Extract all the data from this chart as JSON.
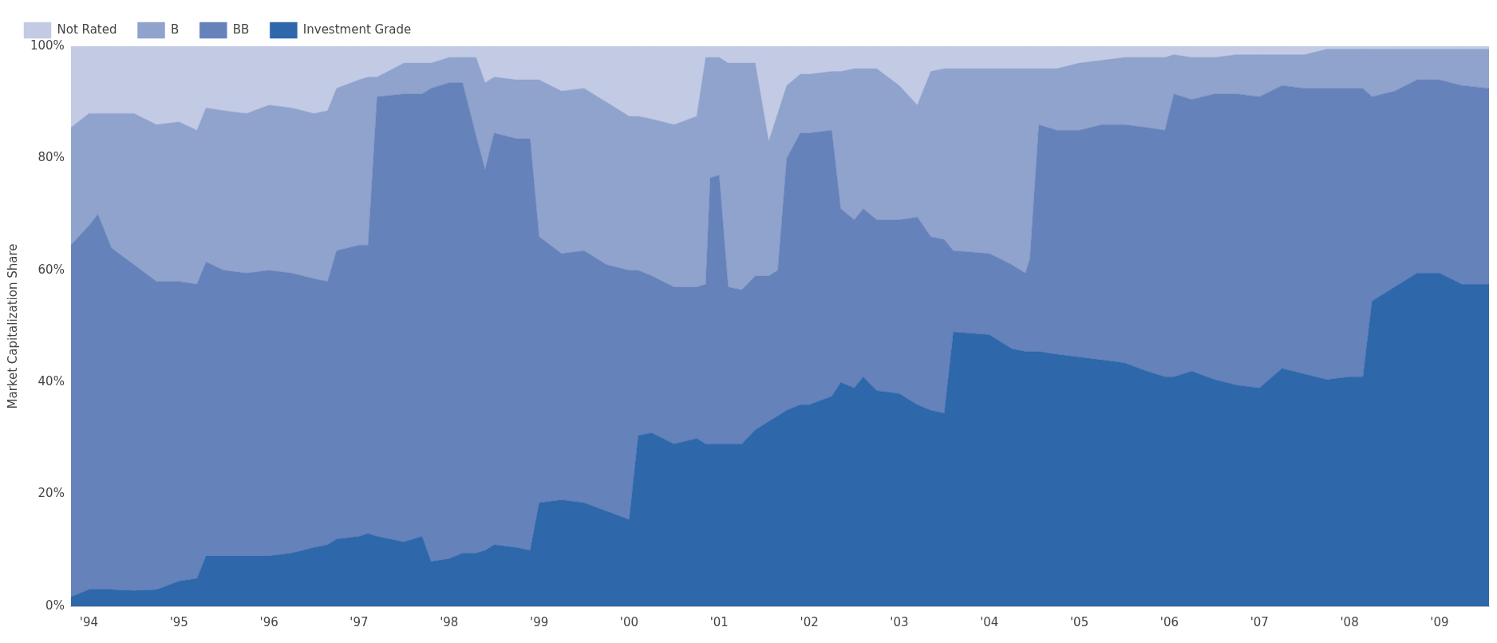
{
  "chart_data": {
    "type": "area",
    "stacked": true,
    "ylabel": "Market Capitalization Share",
    "legend": "top left",
    "grid": false,
    "x": [
      1993.8,
      1994.0,
      1994.1,
      1994.25,
      1994.5,
      1994.75,
      1995.0,
      1995.2,
      1995.3,
      1995.5,
      1995.75,
      1996.0,
      1996.25,
      1996.5,
      1996.65,
      1996.75,
      1997.0,
      1997.1,
      1997.2,
      1997.5,
      1997.7,
      1997.8,
      1998.0,
      1998.15,
      1998.3,
      1998.4,
      1998.5,
      1998.75,
      1998.9,
      1999.0,
      1999.25,
      1999.5,
      1999.75,
      2000.0,
      2000.1,
      2000.25,
      2000.5,
      2000.75,
      2000.85,
      2000.9,
      2001.0,
      2001.1,
      2001.25,
      2001.4,
      2001.55,
      2001.65,
      2001.75,
      2001.9,
      2002.0,
      2002.25,
      2002.35,
      2002.5,
      2002.6,
      2002.75,
      2003.0,
      2003.2,
      2003.35,
      2003.5,
      2003.6,
      2004.0,
      2004.25,
      2004.4,
      2004.45,
      2004.55,
      2004.75,
      2005.0,
      2005.25,
      2005.5,
      2005.75,
      2005.95,
      2006.05,
      2006.25,
      2006.5,
      2006.75,
      2007.0,
      2007.25,
      2007.5,
      2007.75,
      2008.0,
      2008.15,
      2008.25,
      2008.5,
      2008.75,
      2009.0,
      2009.25,
      2009.55
    ],
    "series": [
      {
        "name": "Investment Grade",
        "color": "#2e67aa",
        "values": [
          1.7,
          3,
          3,
          3,
          2.8,
          3,
          4.5,
          5,
          9,
          9,
          9,
          9,
          9.5,
          10.5,
          11,
          12,
          12.5,
          13,
          12.5,
          11.5,
          12.5,
          8,
          8.5,
          9.5,
          9.5,
          10,
          11,
          10.5,
          10,
          18.5,
          19,
          18.5,
          17,
          15.5,
          30.5,
          31,
          29,
          30,
          29,
          29,
          29,
          29,
          29,
          31.5,
          33,
          34,
          35,
          36,
          36,
          37.5,
          40,
          39,
          41,
          38.5,
          38,
          36,
          35,
          34.5,
          49,
          48.5,
          46,
          45.5,
          45.5,
          45.5,
          45,
          44.5,
          44,
          43.5,
          42,
          41,
          41,
          42,
          40.5,
          39.5,
          39,
          42.5,
          41.5,
          40.5,
          41,
          41,
          54.5,
          57,
          59.5,
          59.5,
          57.5,
          57.5
        ]
      },
      {
        "name": "BB",
        "color": "#6682ba",
        "values": [
          62.8,
          65,
          67,
          61,
          58.2,
          55,
          53.5,
          52.5,
          52.5,
          51,
          50.5,
          51,
          50,
          48,
          47,
          51.5,
          52,
          51.5,
          78.5,
          80,
          79,
          84.5,
          85,
          84,
          74.5,
          68,
          73.5,
          73,
          73.5,
          47.5,
          44,
          45,
          44,
          44.5,
          29.5,
          28,
          28,
          27,
          28.5,
          47.5,
          48,
          28,
          27.5,
          27.5,
          26,
          26,
          45,
          48.5,
          48.5,
          47.5,
          31,
          30,
          30,
          30.5,
          31,
          33.5,
          31,
          31,
          14.5,
          14.5,
          15,
          14,
          16.5,
          40.5,
          40,
          40.5,
          42,
          42.5,
          43.5,
          44,
          50.5,
          48.5,
          51,
          52,
          52,
          50.5,
          51,
          52,
          51.5,
          51.5,
          36.5,
          35,
          34.5,
          34.5,
          35.5,
          35
        ]
      },
      {
        "name": "B",
        "color": "#8fa3cd",
        "values": [
          21,
          20,
          18,
          24,
          27,
          28,
          28.5,
          27.5,
          27.5,
          28.5,
          28.5,
          29.5,
          29.5,
          29.5,
          30.5,
          29,
          29.5,
          30,
          3.5,
          5.5,
          5.5,
          4.5,
          4.5,
          4.5,
          14,
          15.5,
          10,
          10.5,
          10.5,
          28,
          29,
          29,
          29,
          27.5,
          27.5,
          28,
          29,
          30.5,
          40.5,
          21.5,
          21,
          40,
          40.5,
          38,
          24,
          28,
          13,
          10.5,
          10.5,
          10.5,
          24.5,
          27,
          25,
          27,
          24,
          20,
          29.5,
          30.5,
          32.5,
          33,
          35,
          36.5,
          34,
          10,
          11,
          12,
          11.5,
          12,
          12.5,
          13,
          7,
          7.5,
          6.5,
          7,
          7.5,
          5.5,
          6,
          7,
          7,
          7,
          8.5,
          7.5,
          5.5,
          5.5,
          6.5,
          7
        ]
      },
      {
        "name": "Not Rated",
        "color": "#c3cae4",
        "values": [
          14.5,
          12,
          12,
          12,
          12,
          14,
          13.5,
          15,
          11,
          11.5,
          12,
          10.5,
          11,
          12,
          11.5,
          7.5,
          6,
          5.5,
          5.5,
          3,
          3,
          3,
          2,
          2,
          2,
          6.5,
          5.5,
          6,
          6,
          6,
          8,
          7.5,
          10,
          12.5,
          12.5,
          13,
          14,
          12.5,
          2,
          2,
          2,
          3,
          3,
          3,
          17,
          12,
          7,
          5,
          5,
          4.5,
          4.5,
          4,
          4,
          4,
          7,
          10.5,
          4.5,
          4,
          4,
          4,
          4,
          4,
          4,
          4,
          4,
          3,
          2.5,
          2,
          2,
          2,
          1.5,
          2,
          2,
          1.5,
          1.5,
          1.5,
          1.5,
          0.5,
          0.5,
          0.5,
          0.5,
          0.5,
          0.5,
          0.5,
          0.5,
          0.5
        ]
      }
    ],
    "xlim": [
      1993.8,
      2009.55
    ],
    "xticks": [
      {
        "value": 1994,
        "label": "'94"
      },
      {
        "value": 1995,
        "label": "'95"
      },
      {
        "value": 1996,
        "label": "'96"
      },
      {
        "value": 1997,
        "label": "'97"
      },
      {
        "value": 1998,
        "label": "'98"
      },
      {
        "value": 1999,
        "label": "'99"
      },
      {
        "value": 2000,
        "label": "'00"
      },
      {
        "value": 2001,
        "label": "'01"
      },
      {
        "value": 2002,
        "label": "'02"
      },
      {
        "value": 2003,
        "label": "'03"
      },
      {
        "value": 2004,
        "label": "'04"
      },
      {
        "value": 2005,
        "label": "'05"
      },
      {
        "value": 2006,
        "label": "'06"
      },
      {
        "value": 2007,
        "label": "'07"
      },
      {
        "value": 2008,
        "label": "'08"
      },
      {
        "value": 2009,
        "label": "'09"
      }
    ],
    "ylim": [
      0,
      100
    ],
    "yticks": [
      {
        "value": 0,
        "label": "0%"
      },
      {
        "value": 20,
        "label": "20%"
      },
      {
        "value": 40,
        "label": "40%"
      },
      {
        "value": 60,
        "label": "60%"
      },
      {
        "value": 80,
        "label": "80%"
      },
      {
        "value": 100,
        "label": "100%"
      }
    ]
  }
}
